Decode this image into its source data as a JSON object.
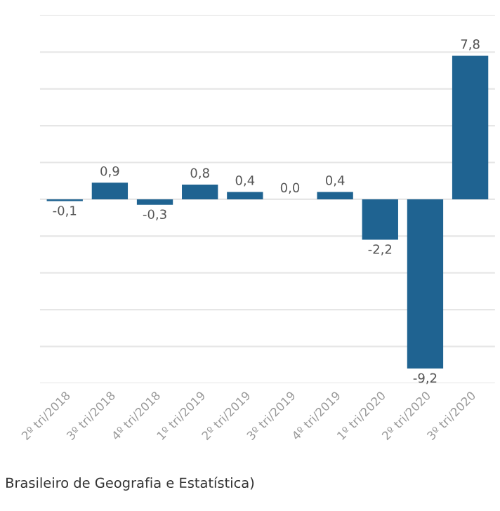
{
  "chart_data": {
    "type": "bar",
    "categories": [
      "2º tri/2018",
      "3º tri/2018",
      "4º tri/2018",
      "1º tri/2019",
      "2º tri/2019",
      "3º tri/2019",
      "4º tri/2019",
      "1º tri/2020",
      "2º tri/2020",
      "3º tri/2020"
    ],
    "values": [
      -0.1,
      0.9,
      -0.3,
      0.8,
      0.4,
      0.0,
      0.4,
      -2.2,
      -9.2,
      7.8
    ],
    "value_labels": [
      "-0,1",
      "0,9",
      "-0,3",
      "0,8",
      "0,4",
      "0,0",
      "0,4",
      "-2,2",
      "-9,2",
      "7,8"
    ],
    "color": "#1f6391",
    "ylim": [
      -10,
      10
    ],
    "yticks": [
      {
        "value": -10,
        "label": null
      },
      {
        "value": -8,
        "label": null
      },
      {
        "value": -6,
        "label": null
      },
      {
        "value": -4,
        "label": null
      },
      {
        "value": -2,
        "label": null
      },
      {
        "value": 0,
        "label": null
      },
      {
        "value": 2,
        "label": null
      },
      {
        "value": 4,
        "label": null
      },
      {
        "value": 6,
        "label": null
      },
      {
        "value": 8,
        "label": null
      },
      {
        "value": 10,
        "label": null
      }
    ],
    "grid": "y",
    "tick_labels": "x",
    "annotations": [
      "Brasileiro de Geografia e Estatística)"
    ]
  }
}
